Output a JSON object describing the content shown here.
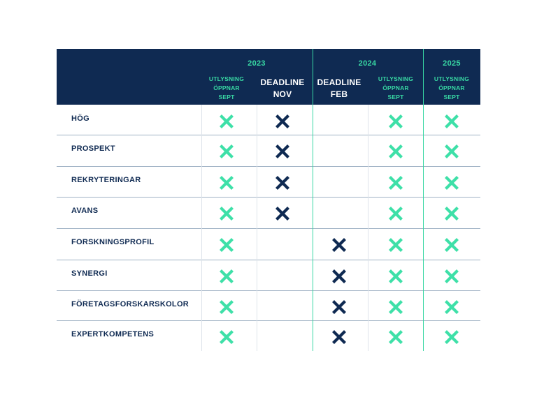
{
  "years": [
    {
      "label": "2023"
    },
    {
      "label": "2024"
    },
    {
      "label": "2025"
    }
  ],
  "columns": [
    {
      "label": "UTLYSNING\nÖPPNAR\nSEPT",
      "style": "accent"
    },
    {
      "label": "DEADLINE\nNOV",
      "style": "white"
    },
    {
      "label": "DEADLINE\nFEB",
      "style": "white"
    },
    {
      "label": "UTLYSNING\nÖPPNAR\nSEPT",
      "style": "accent"
    },
    {
      "label": "UTLYSNING\nÖPPNAR\nSEPT",
      "style": "accent"
    }
  ],
  "rows": [
    {
      "label": "HÖG",
      "marks": [
        "green",
        "navy",
        "",
        "green",
        "green"
      ]
    },
    {
      "label": "PROSPEKT",
      "marks": [
        "green",
        "navy",
        "",
        "green",
        "green"
      ]
    },
    {
      "label": "REKRYTERINGAR",
      "marks": [
        "green",
        "navy",
        "",
        "green",
        "green"
      ]
    },
    {
      "label": "AVANS",
      "marks": [
        "green",
        "navy",
        "",
        "green",
        "green"
      ]
    },
    {
      "label": "FORSKNINGSPROFIL",
      "marks": [
        "green",
        "",
        "navy",
        "green",
        "green"
      ]
    },
    {
      "label": "SYNERGI",
      "marks": [
        "green",
        "",
        "navy",
        "green",
        "green"
      ]
    },
    {
      "label": "FÖRETAGSFORSKARSKOLOR",
      "marks": [
        "green",
        "",
        "navy",
        "green",
        "green"
      ]
    },
    {
      "label": "EXPERTKOMPETENS",
      "marks": [
        "green",
        "",
        "navy",
        "green",
        "green"
      ]
    }
  ],
  "colors": {
    "header_bg": "#0f2a52",
    "accent": "#38d7a3",
    "green_mark": "#3ee0a8",
    "navy_mark": "#0f2a52"
  },
  "icons": {
    "mark": "x-cross-icon"
  }
}
